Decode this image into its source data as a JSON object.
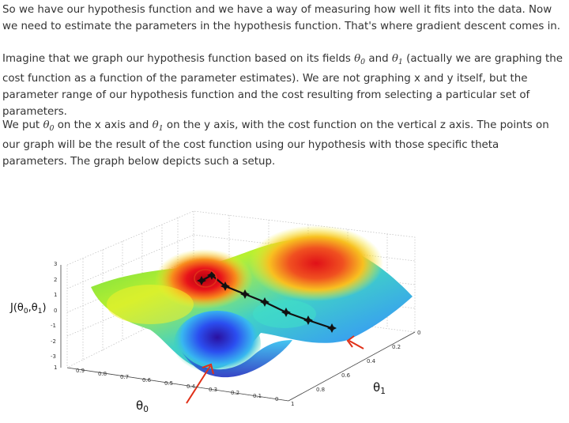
{
  "paragraphs": {
    "p1": "So we have our hypothesis function and we have a way of measuring how well it fits into the data. Now we need to estimate the parameters in the hypothesis function. That's where gradient descent comes in.",
    "p2_a": "Imagine that we graph our hypothesis function based on its fields ",
    "p2_b": " and ",
    "p2_c": " (actually we are graphing the cost function as a function of the parameter estimates). We are not graphing x and y itself, but the parameter range of our hypothesis function and the cost resulting from selecting a particular set of parameters.",
    "p3_a": "We put ",
    "p3_b": " on the x axis and ",
    "p3_c": " on the y axis, with the cost function on the vertical z axis. The points on our graph will be the result of the cost function using our hypothesis with those specific theta parameters. The graph below depicts such a setup."
  },
  "math": {
    "theta": "θ",
    "sub0": "0",
    "sub1": "1"
  },
  "figure": {
    "z_axis_label": "J(θ0,θ1)",
    "z_label_parts": {
      "prefix": "J(θ",
      "s0": "0",
      "comma": ",θ",
      "s1": "1",
      "suffix": ")"
    },
    "x_axis_symbol": "θ",
    "x_axis_sub": "0",
    "y_axis_symbol": "θ",
    "y_axis_sub": "1",
    "z_ticks": [
      "3",
      "2",
      "1",
      "0",
      "-1",
      "-2",
      "-3"
    ],
    "theta0_ticks": [
      "1",
      "0.9",
      "0.8",
      "0.7",
      "0.6",
      "0.5",
      "0.4",
      "0.3",
      "0.2",
      "0.1",
      "0"
    ],
    "theta1_ticks": [
      "1",
      "0.8",
      "0.6",
      "0.4",
      "0.2",
      "0"
    ],
    "colors": {
      "peak": "#e8121a",
      "mid": "#f4f02a",
      "low": "#2b6bf0",
      "valley": "#2a1fb0",
      "path": "#111111",
      "arrow": "#e03018"
    }
  }
}
